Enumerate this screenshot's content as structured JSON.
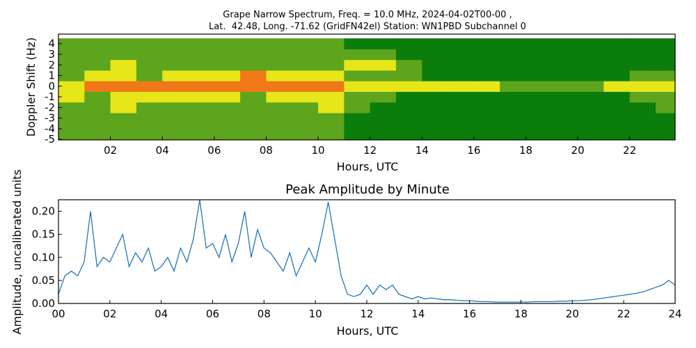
{
  "chart_data": [
    {
      "type": "heatmap",
      "title": [
        "Grape Narrow Spectrum, Freq. = 10.0 MHz, 2024-04-02T00-00 ,",
        "Lat.  42.48, Long. -71.62 (GridFN42el) Station: WN1PBD Subchannel 0"
      ],
      "x_label": "Hours, UTC",
      "y_label": "Doppler Shift (Hz)",
      "xlim": [
        0,
        23.75
      ],
      "ylim": [
        -5.05,
        4.9
      ],
      "xticks": [
        {
          "value": 2,
          "label": "02"
        },
        {
          "value": 4,
          "label": "04"
        },
        {
          "value": 6,
          "label": "06"
        },
        {
          "value": 8,
          "label": "08"
        },
        {
          "value": 10,
          "label": "10"
        },
        {
          "value": 12,
          "label": "12"
        },
        {
          "value": 14,
          "label": "14"
        },
        {
          "value": 16,
          "label": "16"
        },
        {
          "value": 18,
          "label": "18"
        },
        {
          "value": 20,
          "label": "20"
        },
        {
          "value": 22,
          "label": "22"
        }
      ],
      "yticks": [
        -5,
        -4,
        -3,
        -2,
        -1,
        0,
        1,
        2,
        3,
        4
      ],
      "x": [
        0.5,
        1.5,
        2.5,
        3.5,
        4.5,
        5.5,
        6.5,
        7.5,
        8.5,
        9.5,
        10.5,
        11.5,
        12.5,
        13.5,
        14.5,
        15.5,
        16.5,
        17.5,
        18.5,
        19.5,
        20.5,
        21.5,
        22.5,
        23.5
      ],
      "y": [
        -5,
        -4,
        -3,
        -2,
        -1,
        0,
        1,
        2,
        3,
        4
      ],
      "colors": [
        "#0b7d0b",
        "#5ea51e",
        "#e6e619",
        "#f07818"
      ],
      "z": [
        [
          1,
          1,
          1,
          1,
          1,
          1,
          1,
          1,
          1,
          1,
          1,
          0,
          0,
          0,
          0,
          0,
          0,
          0,
          0,
          0,
          0,
          0,
          0,
          0
        ],
        [
          1,
          1,
          1,
          1,
          1,
          1,
          1,
          1,
          1,
          1,
          1,
          0,
          0,
          0,
          0,
          0,
          0,
          0,
          0,
          0,
          0,
          0,
          0,
          0
        ],
        [
          1,
          1,
          1,
          1,
          1,
          1,
          1,
          1,
          1,
          1,
          1,
          0,
          0,
          0,
          0,
          0,
          0,
          0,
          0,
          0,
          0,
          0,
          0,
          0
        ],
        [
          1,
          1,
          2,
          1,
          1,
          1,
          1,
          1,
          1,
          1,
          2,
          1,
          0,
          0,
          0,
          0,
          0,
          0,
          0,
          0,
          0,
          0,
          0,
          1
        ],
        [
          2,
          1,
          2,
          2,
          2,
          2,
          2,
          1,
          2,
          2,
          2,
          1,
          1,
          0,
          0,
          0,
          0,
          0,
          0,
          0,
          0,
          0,
          1,
          1
        ],
        [
          2,
          3,
          3,
          3,
          3,
          3,
          3,
          3,
          3,
          3,
          3,
          2,
          2,
          2,
          2,
          2,
          2,
          1,
          1,
          1,
          1,
          2,
          2,
          2
        ],
        [
          1,
          2,
          2,
          1,
          2,
          2,
          2,
          3,
          2,
          2,
          2,
          1,
          1,
          1,
          0,
          0,
          0,
          0,
          0,
          0,
          0,
          0,
          1,
          1
        ],
        [
          1,
          1,
          2,
          1,
          1,
          1,
          1,
          1,
          1,
          1,
          1,
          2,
          2,
          1,
          0,
          0,
          0,
          0,
          0,
          0,
          0,
          0,
          0,
          0
        ],
        [
          1,
          1,
          1,
          1,
          1,
          1,
          1,
          1,
          1,
          1,
          1,
          1,
          1,
          0,
          0,
          0,
          0,
          0,
          0,
          0,
          0,
          0,
          0,
          0
        ],
        [
          1,
          1,
          1,
          1,
          1,
          1,
          1,
          1,
          1,
          1,
          1,
          0,
          0,
          0,
          0,
          0,
          0,
          0,
          0,
          0,
          0,
          0,
          0,
          0
        ]
      ]
    },
    {
      "type": "line",
      "title": "Peak Amplitude by Minute",
      "x_label": "Hours, UTC",
      "y_label": "Amplitude, uncalibrated units",
      "color": "#1f77b4",
      "xlim": [
        0,
        24
      ],
      "ylim": [
        0,
        0.225
      ],
      "xticks": [
        {
          "value": 0,
          "label": "00"
        },
        {
          "value": 2,
          "label": "02"
        },
        {
          "value": 4,
          "label": "04"
        },
        {
          "value": 6,
          "label": "06"
        },
        {
          "value": 8,
          "label": "08"
        },
        {
          "value": 10,
          "label": "10"
        },
        {
          "value": 12,
          "label": "12"
        },
        {
          "value": 14,
          "label": "14"
        },
        {
          "value": 16,
          "label": "16"
        },
        {
          "value": 18,
          "label": "18"
        },
        {
          "value": 20,
          "label": "20"
        },
        {
          "value": 22,
          "label": "22"
        },
        {
          "value": 24,
          "label": "24"
        }
      ],
      "yticks": [
        {
          "value": 0,
          "label": "0.00"
        },
        {
          "value": 0.05,
          "label": "0.05"
        },
        {
          "value": 0.1,
          "label": "0.10"
        },
        {
          "value": 0.15,
          "label": "0.15"
        },
        {
          "value": 0.2,
          "label": "0.20"
        }
      ],
      "x": [
        0,
        0.25,
        0.5,
        0.75,
        1,
        1.25,
        1.5,
        1.75,
        2,
        2.25,
        2.5,
        2.75,
        3,
        3.25,
        3.5,
        3.75,
        4,
        4.25,
        4.5,
        4.75,
        5,
        5.25,
        5.5,
        5.75,
        6,
        6.25,
        6.5,
        6.75,
        7,
        7.25,
        7.5,
        7.75,
        8,
        8.25,
        8.5,
        8.75,
        9,
        9.25,
        9.5,
        9.75,
        10,
        10.25,
        10.5,
        10.75,
        11,
        11.25,
        11.5,
        11.75,
        12,
        12.25,
        12.5,
        12.75,
        13,
        13.25,
        13.5,
        13.75,
        14,
        14.25,
        14.5,
        14.75,
        15,
        15.25,
        15.5,
        15.75,
        16,
        16.25,
        16.5,
        16.75,
        17,
        17.25,
        17.5,
        17.75,
        18,
        18.25,
        18.5,
        18.75,
        19,
        19.25,
        19.5,
        19.75,
        20,
        20.25,
        20.5,
        20.75,
        21,
        21.25,
        21.5,
        21.75,
        22,
        22.25,
        22.5,
        22.75,
        23,
        23.25,
        23.5,
        23.75,
        24
      ],
      "values": [
        0.02,
        0.06,
        0.07,
        0.06,
        0.09,
        0.2,
        0.08,
        0.1,
        0.09,
        0.12,
        0.15,
        0.08,
        0.11,
        0.09,
        0.12,
        0.07,
        0.08,
        0.1,
        0.07,
        0.12,
        0.09,
        0.14,
        0.225,
        0.12,
        0.13,
        0.1,
        0.15,
        0.09,
        0.13,
        0.2,
        0.1,
        0.16,
        0.12,
        0.11,
        0.09,
        0.07,
        0.11,
        0.06,
        0.09,
        0.12,
        0.09,
        0.15,
        0.22,
        0.14,
        0.06,
        0.02,
        0.015,
        0.02,
        0.04,
        0.02,
        0.04,
        0.03,
        0.04,
        0.02,
        0.015,
        0.01,
        0.015,
        0.01,
        0.012,
        0.01,
        0.008,
        0.008,
        0.007,
        0.006,
        0.006,
        0.005,
        0.004,
        0.004,
        0.003,
        0.003,
        0.003,
        0.003,
        0.003,
        0.003,
        0.004,
        0.004,
        0.004,
        0.004,
        0.005,
        0.005,
        0.006,
        0.006,
        0.007,
        0.008,
        0.01,
        0.012,
        0.014,
        0.016,
        0.018,
        0.02,
        0.022,
        0.025,
        0.03,
        0.035,
        0.04,
        0.05,
        0.04
      ]
    }
  ]
}
